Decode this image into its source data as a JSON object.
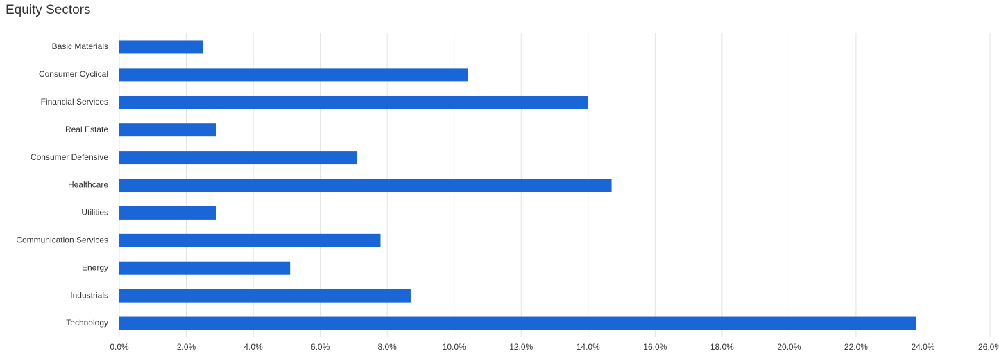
{
  "chart_data": {
    "type": "hbar",
    "title": "Equity Sectors",
    "categories": [
      "Basic Materials",
      "Consumer Cyclical",
      "Financial Services",
      "Real Estate",
      "Consumer Defensive",
      "Healthcare",
      "Utilities",
      "Communication Services",
      "Energy",
      "Industrials",
      "Technology"
    ],
    "values": [
      2.5,
      10.4,
      14.0,
      2.9,
      7.1,
      14.7,
      2.9,
      7.8,
      5.1,
      8.7,
      23.8
    ],
    "color": "#1a66d6",
    "xlim": [
      0,
      26
    ],
    "xticks": [
      {
        "value": 0,
        "label": "0.0%"
      },
      {
        "value": 2,
        "label": "2.0%"
      },
      {
        "value": 4,
        "label": "4.0%"
      },
      {
        "value": 6,
        "label": "6.0%"
      },
      {
        "value": 8,
        "label": "8.0%"
      },
      {
        "value": 10,
        "label": "10.0%"
      },
      {
        "value": 12,
        "label": "12.0%"
      },
      {
        "value": 14,
        "label": "14.0%"
      },
      {
        "value": 16,
        "label": "16.0%"
      },
      {
        "value": 18,
        "label": "18.0%"
      },
      {
        "value": 20,
        "label": "20.0%"
      },
      {
        "value": 22,
        "label": "22.0%"
      },
      {
        "value": 24,
        "label": "24.0%"
      },
      {
        "value": 26,
        "label": "26.0%"
      }
    ],
    "grid": true
  }
}
